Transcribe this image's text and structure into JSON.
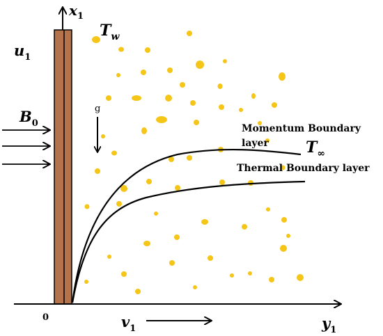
{
  "labels": {
    "x_axis_var": "x",
    "x_axis_sub": "1",
    "y_axis_var": "y",
    "y_axis_sub": "1",
    "origin": "0",
    "wall_temp_var": "T",
    "wall_temp_sub": "w",
    "wall_velocity_var": "u",
    "wall_velocity_sub": "1",
    "magnetic_field_var": "B",
    "magnetic_field_sub": "0",
    "gravity": "g",
    "suction_var": "v",
    "suction_sub": "1",
    "ambient_temp_var": "T",
    "ambient_temp_sub": "∞",
    "momentum_line1": "Momentum Boundary",
    "momentum_line2": "layer",
    "thermal_layer": "Thermal Boundary layer"
  },
  "colors": {
    "plate_fill": "#b5734c",
    "plate_stroke": "#000000",
    "particle": "#f5c518",
    "line": "#000000"
  }
}
